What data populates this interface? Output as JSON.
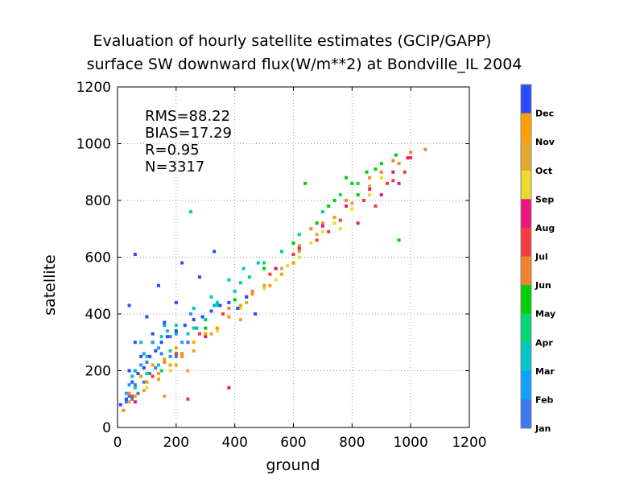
{
  "chart_data": {
    "type": "scatter",
    "title_line1": "Evaluation of hourly satellite estimates (GCIP/GAPP)",
    "title_line2": "surface SW downward flux(W/m**2) at Bondville_IL 2004",
    "xlabel": "ground",
    "ylabel": "satellite",
    "xlim": [
      0,
      1200
    ],
    "ylim": [
      0,
      1200
    ],
    "xticks": [
      "0",
      "200",
      "400",
      "600",
      "800",
      "1000",
      "1200"
    ],
    "yticks": [
      "0",
      "200",
      "400",
      "600",
      "800",
      "1000",
      "1200"
    ],
    "grid": true,
    "stats": {
      "rms": "RMS=88.22",
      "bias": "BIAS=17.29",
      "r": "R=0.95",
      "n": "N=3317"
    },
    "legend": {
      "placement": "right",
      "entries": [
        {
          "label": "Dec",
          "color": "#2a4bff"
        },
        {
          "label": "Nov",
          "color": "#ffa000"
        },
        {
          "label": "Oct",
          "color": "#e3a92b"
        },
        {
          "label": "Sep",
          "color": "#e8dc30"
        },
        {
          "label": "Aug",
          "color": "#ee1480"
        },
        {
          "label": "Jul",
          "color": "#f03c3c"
        },
        {
          "label": "Jun",
          "color": "#f2822e"
        },
        {
          "label": "May",
          "color": "#00d000"
        },
        {
          "label": "Apr",
          "color": "#00d878"
        },
        {
          "label": "Mar",
          "color": "#00c8c8"
        },
        {
          "label": "Feb",
          "color": "#10a0ff"
        },
        {
          "label": "Jan",
          "color": "#3c78f0"
        }
      ]
    },
    "series": [
      {
        "month": "Jan",
        "color": "#3c78f0",
        "points": [
          [
            20,
            60
          ],
          [
            40,
            110
          ],
          [
            60,
            150
          ],
          [
            80,
            180
          ],
          [
            100,
            230
          ],
          [
            120,
            300
          ],
          [
            150,
            260
          ],
          [
            180,
            320
          ],
          [
            30,
            90
          ],
          [
            70,
            120
          ],
          [
            110,
            190
          ],
          [
            200,
            250
          ],
          [
            240,
            300
          ],
          [
            90,
            160
          ],
          [
            50,
            100
          ],
          [
            130,
            210
          ]
        ]
      },
      {
        "month": "Feb",
        "color": "#10a0ff",
        "points": [
          [
            30,
            120
          ],
          [
            60,
            200
          ],
          [
            90,
            260
          ],
          [
            120,
            300
          ],
          [
            160,
            360
          ],
          [
            200,
            330
          ],
          [
            250,
            400
          ],
          [
            300,
            380
          ],
          [
            40,
            150
          ],
          [
            80,
            220
          ],
          [
            140,
            280
          ],
          [
            220,
            300
          ],
          [
            270,
            350
          ],
          [
            330,
            430
          ],
          [
            180,
            250
          ]
        ]
      },
      {
        "month": "Mar",
        "color": "#00c8c8",
        "points": [
          [
            50,
            180
          ],
          [
            100,
            250
          ],
          [
            150,
            320
          ],
          [
            200,
            360
          ],
          [
            260,
            420
          ],
          [
            320,
            460
          ],
          [
            380,
            520
          ],
          [
            430,
            560
          ],
          [
            480,
            580
          ],
          [
            60,
            140
          ],
          [
            140,
            220
          ],
          [
            240,
            330
          ],
          [
            340,
            440
          ],
          [
            400,
            480
          ],
          [
            250,
            760
          ],
          [
            80,
            300
          ],
          [
            170,
            340
          ]
        ]
      },
      {
        "month": "Apr",
        "color": "#00d878",
        "points": [
          [
            100,
            190
          ],
          [
            180,
            270
          ],
          [
            260,
            350
          ],
          [
            340,
            430
          ],
          [
            420,
            510
          ],
          [
            500,
            580
          ],
          [
            560,
            620
          ],
          [
            620,
            680
          ],
          [
            700,
            760
          ],
          [
            760,
            820
          ],
          [
            820,
            860
          ],
          [
            150,
            200
          ],
          [
            300,
            380
          ],
          [
            450,
            530
          ],
          [
            600,
            650
          ],
          [
            680,
            720
          ],
          [
            740,
            800
          ]
        ]
      },
      {
        "month": "May",
        "color": "#00d000",
        "points": [
          [
            200,
            260
          ],
          [
            300,
            350
          ],
          [
            400,
            450
          ],
          [
            500,
            560
          ],
          [
            600,
            650
          ],
          [
            680,
            720
          ],
          [
            740,
            800
          ],
          [
            800,
            860
          ],
          [
            850,
            900
          ],
          [
            900,
            930
          ],
          [
            950,
            960
          ],
          [
            820,
            820
          ],
          [
            880,
            910
          ],
          [
            720,
            780
          ],
          [
            960,
            660
          ],
          [
            640,
            860
          ],
          [
            780,
            880
          ]
        ]
      },
      {
        "month": "Jun",
        "color": "#f2822e",
        "points": [
          [
            40,
            120
          ],
          [
            100,
            160
          ],
          [
            160,
            230
          ],
          [
            220,
            260
          ],
          [
            300,
            330
          ],
          [
            380,
            420
          ],
          [
            460,
            480
          ],
          [
            540,
            560
          ],
          [
            620,
            640
          ],
          [
            700,
            720
          ],
          [
            780,
            800
          ],
          [
            860,
            880
          ],
          [
            940,
            940
          ],
          [
            1000,
            970
          ],
          [
            1050,
            980
          ],
          [
            900,
            900
          ],
          [
            960,
            930
          ],
          [
            660,
            700
          ]
        ]
      },
      {
        "month": "Jul",
        "color": "#f03c3c",
        "points": [
          [
            50,
            110
          ],
          [
            120,
            180
          ],
          [
            200,
            260
          ],
          [
            280,
            330
          ],
          [
            360,
            400
          ],
          [
            440,
            460
          ],
          [
            520,
            540
          ],
          [
            600,
            610
          ],
          [
            680,
            660
          ],
          [
            760,
            730
          ],
          [
            840,
            800
          ],
          [
            920,
            860
          ],
          [
            980,
            900
          ],
          [
            880,
            780
          ],
          [
            940,
            870
          ],
          [
            1000,
            950
          ],
          [
            240,
            100
          ],
          [
            720,
            690
          ]
        ]
      },
      {
        "month": "Aug",
        "color": "#ee1480",
        "points": [
          [
            60,
            90
          ],
          [
            140,
            170
          ],
          [
            220,
            250
          ],
          [
            300,
            320
          ],
          [
            380,
            390
          ],
          [
            460,
            470
          ],
          [
            540,
            560
          ],
          [
            620,
            630
          ],
          [
            700,
            710
          ],
          [
            780,
            780
          ],
          [
            860,
            840
          ],
          [
            940,
            900
          ],
          [
            990,
            950
          ],
          [
            820,
            720
          ],
          [
            900,
            820
          ],
          [
            960,
            860
          ],
          [
            380,
            140
          ]
        ]
      },
      {
        "month": "Sep",
        "color": "#e8dc30",
        "points": [
          [
            100,
            140
          ],
          [
            180,
            200
          ],
          [
            260,
            270
          ],
          [
            340,
            340
          ],
          [
            420,
            420
          ],
          [
            500,
            490
          ],
          [
            580,
            570
          ],
          [
            660,
            650
          ],
          [
            740,
            720
          ],
          [
            800,
            770
          ],
          [
            860,
            820
          ],
          [
            900,
            880
          ],
          [
            620,
            600
          ],
          [
            700,
            690
          ],
          [
            760,
            700
          ],
          [
            540,
            520
          ]
        ]
      },
      {
        "month": "Oct",
        "color": "#e3a92b",
        "points": [
          [
            40,
            90
          ],
          [
            90,
            130
          ],
          [
            140,
            170
          ],
          [
            200,
            220
          ],
          [
            260,
            270
          ],
          [
            320,
            330
          ],
          [
            380,
            390
          ],
          [
            440,
            440
          ],
          [
            500,
            500
          ],
          [
            560,
            560
          ],
          [
            620,
            620
          ],
          [
            680,
            680
          ],
          [
            740,
            740
          ],
          [
            800,
            790
          ],
          [
            860,
            850
          ],
          [
            160,
            110
          ],
          [
            240,
            200
          ],
          [
            420,
            380
          ]
        ]
      },
      {
        "month": "Nov",
        "color": "#ffa000",
        "points": [
          [
            20,
            60
          ],
          [
            60,
            110
          ],
          [
            100,
            160
          ],
          [
            140,
            190
          ],
          [
            180,
            220
          ],
          [
            220,
            250
          ],
          [
            260,
            300
          ],
          [
            300,
            330
          ],
          [
            340,
            350
          ],
          [
            380,
            390
          ],
          [
            420,
            430
          ],
          [
            460,
            470
          ],
          [
            520,
            500
          ],
          [
            560,
            540
          ],
          [
            600,
            580
          ],
          [
            80,
            180
          ],
          [
            120,
            220
          ],
          [
            160,
            240
          ],
          [
            200,
            280
          ]
        ]
      },
      {
        "month": "Dec",
        "color": "#2a4bff",
        "points": [
          [
            10,
            80
          ],
          [
            30,
            100
          ],
          [
            50,
            160
          ],
          [
            70,
            190
          ],
          [
            90,
            210
          ],
          [
            110,
            250
          ],
          [
            130,
            270
          ],
          [
            150,
            300
          ],
          [
            170,
            320
          ],
          [
            200,
            340
          ],
          [
            230,
            360
          ],
          [
            260,
            380
          ],
          [
            290,
            390
          ],
          [
            320,
            410
          ],
          [
            350,
            430
          ],
          [
            380,
            440
          ],
          [
            410,
            420
          ],
          [
            440,
            460
          ],
          [
            470,
            400
          ],
          [
            40,
            200
          ],
          [
            80,
            250
          ],
          [
            120,
            330
          ],
          [
            160,
            370
          ],
          [
            200,
            440
          ],
          [
            60,
            300
          ],
          [
            100,
            390
          ],
          [
            140,
            500
          ],
          [
            40,
            430
          ],
          [
            60,
            610
          ],
          [
            220,
            580
          ],
          [
            280,
            530
          ],
          [
            330,
            620
          ]
        ]
      }
    ]
  }
}
